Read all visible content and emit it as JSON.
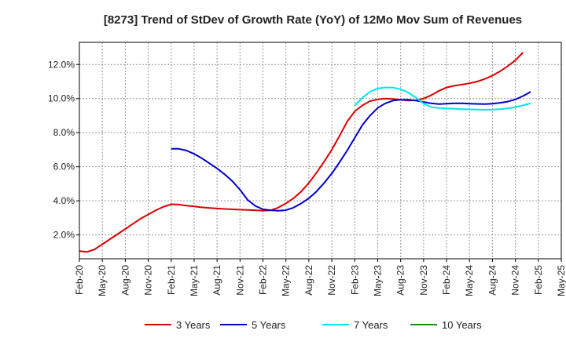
{
  "chart_data": {
    "type": "line",
    "title": "[8273]  Trend of StDev of Growth Rate (YoY) of 12Mo Mov Sum of Revenues",
    "xlabel": "",
    "ylabel": "",
    "ylim": [
      0.6,
      13.3
    ],
    "x_tick_labels": [
      "Feb-20",
      "May-20",
      "Aug-20",
      "Nov-20",
      "Feb-21",
      "May-21",
      "Aug-21",
      "Nov-21",
      "Feb-22",
      "May-22",
      "Aug-22",
      "Nov-22",
      "Feb-23",
      "May-23",
      "Aug-23",
      "Nov-23",
      "Feb-24",
      "May-24",
      "Aug-24",
      "Nov-24",
      "Feb-25",
      "May-25"
    ],
    "y_ticks": [
      2.0,
      4.0,
      6.0,
      8.0,
      10.0,
      12.0
    ],
    "y_tick_labels": [
      "2.0%",
      "4.0%",
      "6.0%",
      "8.0%",
      "10.0%",
      "12.0%"
    ],
    "legend_position": "bottom",
    "series": [
      {
        "name": "3 Years",
        "color": "#dd0000",
        "start_index": 0,
        "values": [
          1.05,
          1.0,
          1.15,
          1.45,
          1.75,
          2.05,
          2.35,
          2.65,
          2.95,
          3.2,
          3.45,
          3.65,
          3.8,
          3.78,
          3.72,
          3.67,
          3.62,
          3.58,
          3.55,
          3.52,
          3.5,
          3.48,
          3.46,
          3.45,
          3.42,
          3.44,
          3.6,
          3.85,
          4.15,
          4.55,
          5.05,
          5.65,
          6.3,
          7.0,
          7.8,
          8.65,
          9.25,
          9.6,
          9.85,
          9.95,
          10.0,
          9.98,
          9.93,
          9.88,
          9.9,
          10.0,
          10.2,
          10.45,
          10.65,
          10.75,
          10.82,
          10.9,
          11.0,
          11.15,
          11.35,
          11.6,
          11.9,
          12.25,
          12.7
        ]
      },
      {
        "name": "5 Years",
        "color": "#0000cc",
        "start_index": 12,
        "values": [
          7.05,
          7.05,
          6.95,
          6.75,
          6.5,
          6.2,
          5.9,
          5.55,
          5.15,
          4.65,
          4.05,
          3.7,
          3.5,
          3.45,
          3.42,
          3.45,
          3.6,
          3.85,
          4.15,
          4.55,
          5.05,
          5.6,
          6.25,
          6.95,
          7.7,
          8.45,
          9.0,
          9.45,
          9.72,
          9.88,
          9.93,
          9.93,
          9.88,
          9.8,
          9.72,
          9.68,
          9.7,
          9.72,
          9.72,
          9.7,
          9.69,
          9.68,
          9.7,
          9.75,
          9.82,
          9.95,
          10.15,
          10.4
        ]
      },
      {
        "name": "7 Years",
        "color": "#00e5ee",
        "start_index": 36,
        "values": [
          9.6,
          10.05,
          10.4,
          10.6,
          10.65,
          10.65,
          10.55,
          10.35,
          10.05,
          9.7,
          9.5,
          9.45,
          9.42,
          9.4,
          9.38,
          9.37,
          9.35,
          9.34,
          9.35,
          9.38,
          9.43,
          9.5,
          9.6,
          9.72
        ]
      },
      {
        "name": "10 Years",
        "color": "#228b22",
        "start_index": 0,
        "values": []
      }
    ]
  }
}
